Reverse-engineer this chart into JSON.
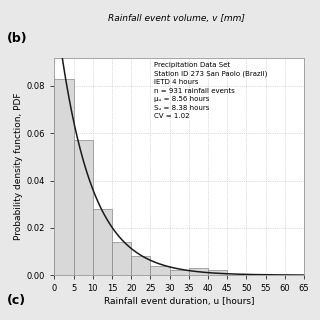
{
  "title_top": "Rainfall event volume, v [mm]",
  "panel_label": "(b)",
  "xlabel": "Rainfall event duration, u [hours]",
  "ylabel": "Probability density function, PDF",
  "xlim": [
    0,
    65
  ],
  "ylim": [
    0,
    0.092
  ],
  "xticks": [
    0,
    5,
    10,
    15,
    20,
    25,
    30,
    35,
    40,
    45,
    50,
    55,
    60,
    65
  ],
  "yticks": [
    0,
    0.02,
    0.04,
    0.06,
    0.08
  ],
  "bin_edges": [
    0,
    5,
    10,
    15,
    20,
    25,
    30,
    35,
    40,
    45
  ],
  "bar_heights": [
    0.083,
    0.057,
    0.028,
    0.014,
    0.008,
    0.004,
    0.002,
    0.003,
    0.002
  ],
  "mu": 8.56,
  "annotation_line1": "Precipitation Data Set",
  "annotation_line2": "Station ID 273 San Paolo (Brazil)",
  "annotation_line3": "IETD 4 hours",
  "annotation_line4": "n = 931 rainfall events",
  "annotation_line5": "μᵤ = 8.56 hours",
  "annotation_line6": "Sᵤ = 8.38 hours",
  "annotation_line7": "CV = 1.02",
  "bar_color": "#d8d8d8",
  "bar_edgecolor": "#888888",
  "curve_color": "#1a1a1a",
  "grid_color": "#bbbbbb",
  "fig_bg_color": "#e8e8e8",
  "ax_bg_color": "#ffffff"
}
